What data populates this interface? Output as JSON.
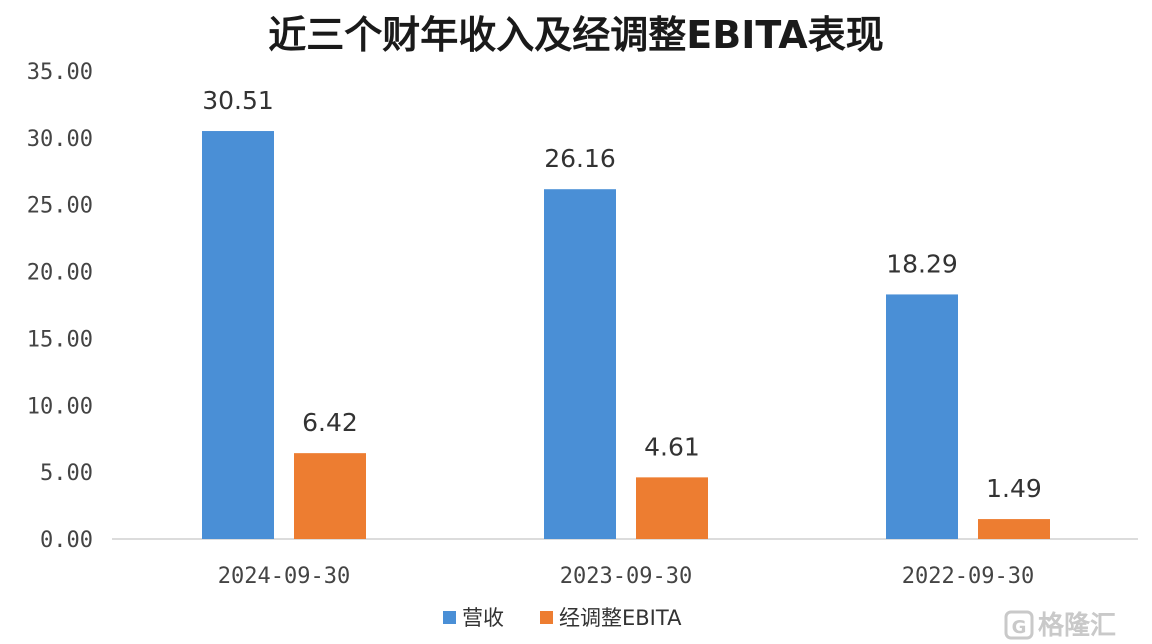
{
  "chart_data": {
    "type": "bar",
    "title": "近三个财年收入及经调整EBITA表现",
    "categories": [
      "2024-09-30",
      "2023-09-30",
      "2022-09-30"
    ],
    "series": [
      {
        "name": "营收",
        "values": [
          30.51,
          26.16,
          18.29
        ],
        "color": "#4a8fd6"
      },
      {
        "name": "经调整EBITA",
        "values": [
          6.42,
          4.61,
          1.49
        ],
        "color": "#ed7d31"
      }
    ],
    "data_labels": {
      "营收": [
        "30.51",
        "26.16",
        "18.29"
      ],
      "经调整EBITA": [
        "6.42",
        "4.61",
        "1.49"
      ]
    },
    "ylim": [
      0,
      35
    ],
    "yticks": [
      "0.00",
      "5.00",
      "10.00",
      "15.00",
      "20.00",
      "25.00",
      "30.00",
      "35.00"
    ],
    "legend_position": "bottom",
    "grid": false
  },
  "watermark": {
    "text": "格隆汇",
    "icon": "g-logo-icon"
  }
}
